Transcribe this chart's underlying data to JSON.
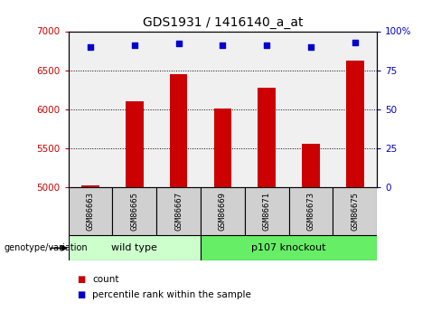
{
  "title": "GDS1931 / 1416140_a_at",
  "samples": [
    "GSM86663",
    "GSM86665",
    "GSM86667",
    "GSM86669",
    "GSM86671",
    "GSM86673",
    "GSM86675"
  ],
  "counts": [
    5020,
    6100,
    6450,
    6010,
    6280,
    5560,
    6620
  ],
  "percentiles": [
    90,
    91,
    92,
    91,
    91,
    90,
    93
  ],
  "groups": [
    {
      "label": "wild type",
      "start": 0,
      "end": 2,
      "color": "#ccffcc"
    },
    {
      "label": "p107 knockout",
      "start": 3,
      "end": 6,
      "color": "#66ee66"
    }
  ],
  "bar_color": "#cc0000",
  "scatter_color": "#0000cc",
  "ylim_left": [
    5000,
    7000
  ],
  "ylim_right": [
    0,
    100
  ],
  "yticks_left": [
    5000,
    5500,
    6000,
    6500,
    7000
  ],
  "yticks_right": [
    0,
    25,
    50,
    75,
    100
  ],
  "right_ytick_labels": [
    "0",
    "25",
    "50",
    "75",
    "100%"
  ],
  "ylabel_left_color": "#cc0000",
  "ylabel_right_color": "#0000cc",
  "grid_color": "black",
  "plot_bg_color": "#f0f0f0",
  "label_box_color": "#d0d0d0",
  "genotype_label": "genotype/variation",
  "legend_count_label": "count",
  "legend_percentile_label": "percentile rank within the sample"
}
